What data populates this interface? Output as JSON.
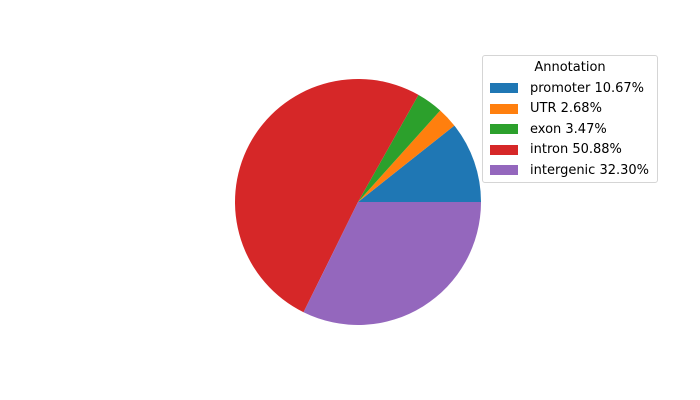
{
  "chart_data": {
    "type": "pie",
    "legend_title": "Annotation",
    "legend_placement": "top-right",
    "start_angle_deg": 0,
    "direction": "counterclockwise",
    "slices": [
      {
        "label": "promoter 10.67%",
        "value": 10.67,
        "color": "#1f77b4"
      },
      {
        "label": "UTR 2.68%",
        "value": 2.68,
        "color": "#ff7f0e"
      },
      {
        "label": "exon 3.47%",
        "value": 3.47,
        "color": "#2ca02c"
      },
      {
        "label": "intron 50.88%",
        "value": 50.88,
        "color": "#d62728"
      },
      {
        "label": "intergenic 32.30%",
        "value": 32.3,
        "color": "#9467bd"
      }
    ]
  }
}
